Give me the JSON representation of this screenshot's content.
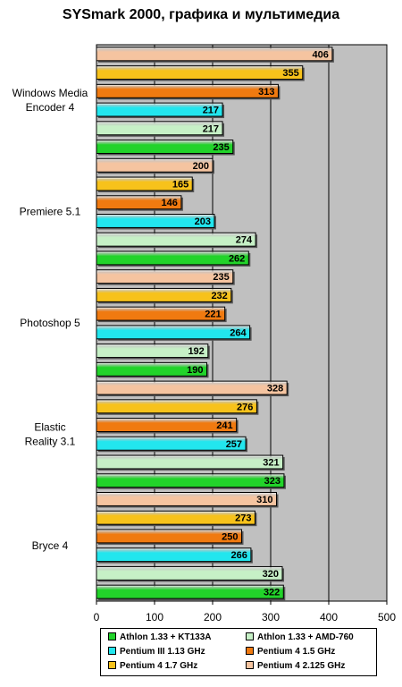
{
  "chart_data": {
    "type": "bar",
    "orientation": "horizontal",
    "title": "SYSmark 2000, графика и мультимедиа",
    "categories": [
      "Windows Media Encoder 4",
      "Premiere 5.1",
      "Photoshop 5",
      "Elastic Reality 3.1",
      "Bryce 4"
    ],
    "xlim": [
      0,
      500
    ],
    "xticks": [
      0,
      100,
      200,
      300,
      400,
      500
    ],
    "grid": true,
    "legend_position": "bottom",
    "series": [
      {
        "name": "Pentium 4 2.125 GHz",
        "color": "#F5C4A0",
        "values": [
          406,
          200,
          235,
          328,
          310
        ]
      },
      {
        "name": "Pentium 4 1.7 GHz",
        "color": "#F7C21B",
        "values": [
          355,
          165,
          232,
          276,
          273
        ]
      },
      {
        "name": "Pentium 4 1.5 GHz",
        "color": "#F07A10",
        "values": [
          313,
          146,
          221,
          241,
          250
        ]
      },
      {
        "name": "Pentium III 1.13 GHz",
        "color": "#22E6EE",
        "values": [
          217,
          203,
          264,
          257,
          266
        ]
      },
      {
        "name": "Athlon 1.33 + AMD-760",
        "color": "#C6F0C6",
        "values": [
          217,
          274,
          192,
          321,
          320
        ]
      },
      {
        "name": "Athlon 1.33 + KT133A",
        "color": "#22D32A",
        "values": [
          235,
          262,
          190,
          323,
          322
        ]
      }
    ],
    "legend_order": [
      "Athlon 1.33 + KT133A",
      "Athlon 1.33 + AMD-760",
      "Pentium III 1.13 GHz",
      "Pentium 4 1.5 GHz",
      "Pentium 4 1.7 GHz",
      "Pentium 4 2.125 GHz"
    ]
  }
}
